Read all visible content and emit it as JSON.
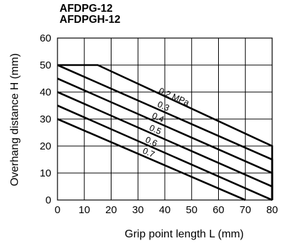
{
  "title_lines": [
    "AFDPG-12",
    "AFDPGH-12"
  ],
  "chart_data": {
    "type": "line",
    "xlabel": "Grip point length  L (mm)",
    "ylabel": "Overhang distance  H (mm)",
    "xlim": [
      0,
      80
    ],
    "ylim": [
      0,
      60
    ],
    "xticks": [
      0,
      10,
      20,
      30,
      40,
      50,
      60,
      70,
      80
    ],
    "yticks": [
      0,
      10,
      20,
      30,
      40,
      50,
      60
    ],
    "grid": true,
    "series": [
      {
        "name": "0.2 MPa",
        "points": [
          [
            0,
            50
          ],
          [
            15,
            50
          ],
          [
            80,
            20
          ],
          [
            80,
            0
          ]
        ]
      },
      {
        "name": "0.3",
        "points": [
          [
            0,
            50
          ],
          [
            80,
            15
          ],
          [
            80,
            0
          ]
        ]
      },
      {
        "name": "0.4",
        "points": [
          [
            0,
            45
          ],
          [
            80,
            10
          ],
          [
            80,
            0
          ]
        ]
      },
      {
        "name": "0.5",
        "points": [
          [
            0,
            40
          ],
          [
            80,
            5
          ],
          [
            80,
            0
          ]
        ]
      },
      {
        "name": "0.6",
        "points": [
          [
            0,
            35
          ],
          [
            80,
            0
          ]
        ]
      },
      {
        "name": "0.7",
        "points": [
          [
            0,
            30
          ],
          [
            70,
            0
          ]
        ]
      }
    ]
  }
}
